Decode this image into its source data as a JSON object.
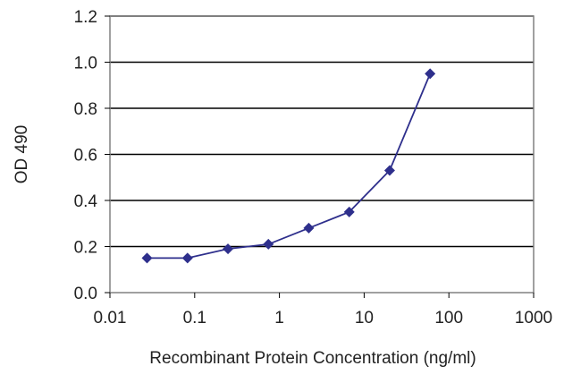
{
  "chart_data": {
    "type": "line",
    "title": "",
    "xlabel": "Recombinant Protein Concentration (ng/ml)",
    "ylabel": "OD 490",
    "x_scale": "log",
    "xlim": [
      0.01,
      1000
    ],
    "ylim": [
      0,
      1.2
    ],
    "x_ticks": [
      {
        "value": 0.01,
        "label": "0.01"
      },
      {
        "value": 0.1,
        "label": "0.1"
      },
      {
        "value": 1,
        "label": "1"
      },
      {
        "value": 10,
        "label": "10"
      },
      {
        "value": 100,
        "label": "100"
      },
      {
        "value": 1000,
        "label": "1000"
      }
    ],
    "y_ticks": [
      {
        "value": 0,
        "label": "0.0"
      },
      {
        "value": 0.2,
        "label": "0.2"
      },
      {
        "value": 0.4,
        "label": "0.4"
      },
      {
        "value": 0.6,
        "label": "0.6"
      },
      {
        "value": 0.8,
        "label": "0.8"
      },
      {
        "value": 1.0,
        "label": "1.0"
      },
      {
        "value": 1.2,
        "label": "1.2"
      }
    ],
    "grid": "horizontal",
    "legend": "none",
    "series": [
      {
        "color": "#2e2f8c",
        "marker": "diamond",
        "x": [
          0.0274,
          0.0823,
          0.247,
          0.741,
          2.22,
          6.67,
          20,
          60
        ],
        "y": [
          0.15,
          0.15,
          0.19,
          0.21,
          0.28,
          0.35,
          0.53,
          0.95
        ]
      }
    ]
  }
}
